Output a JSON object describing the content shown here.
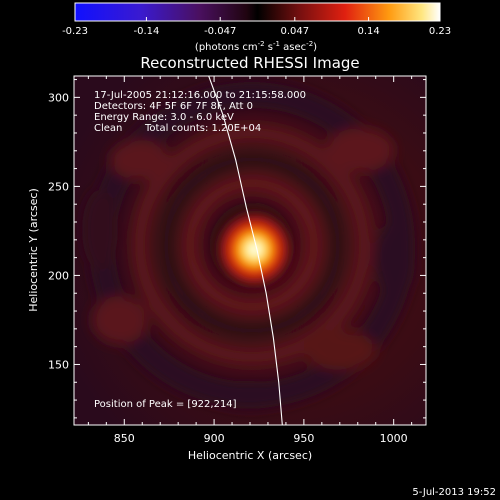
{
  "colorbar": {
    "tick_labels": [
      "-0.23",
      "-0.14",
      "-0.047",
      "0.047",
      "0.14",
      "0.23"
    ],
    "tick_values": [
      -0.23,
      -0.14,
      -0.047,
      0.047,
      0.14,
      0.23
    ],
    "range": [
      -0.23,
      0.23
    ],
    "units_text": "(photons cm",
    "units_exp1": "-2",
    "units_mid": " s",
    "units_exp2": "-1",
    "units_end": " asec",
    "units_exp3": "-2",
    "units_close": ")",
    "colors": {
      "low": "#1a1aff",
      "mid": "#000000",
      "high": "#ffffff"
    }
  },
  "title": "Reconstructed RHESSI Image",
  "info": {
    "time_range": "17-Jul-2005 21:12:16.000 to 21:15:58.000",
    "detectors": "Detectors: 4F 5F 6F 7F 8F, Att 0",
    "energy": "Energy Range: 3.0 - 6.0 keV",
    "clean": "Clean",
    "counts": "Total counts: 1.20E+04",
    "peak": "Position of Peak = [922,214]"
  },
  "axes": {
    "xlabel": "Heliocentric X (arcsec)",
    "ylabel": "Heliocentric Y (arcsec)",
    "xticks": [
      850,
      900,
      950,
      1000
    ],
    "yticks": [
      150,
      200,
      250,
      300
    ],
    "xtick_labels": [
      "850",
      "900",
      "950",
      "1000"
    ],
    "ytick_labels": [
      "150",
      "200",
      "250",
      "300"
    ],
    "xrange": [
      822,
      1018
    ],
    "yrange": [
      116,
      312
    ]
  },
  "source_peak": {
    "x": 922,
    "y": 214
  },
  "limb_points": [
    [
      897,
      312
    ],
    [
      905,
      290
    ],
    [
      912,
      265
    ],
    [
      918,
      238
    ],
    [
      924,
      214
    ],
    [
      929,
      190
    ],
    [
      933,
      165
    ],
    [
      936,
      140
    ],
    [
      938,
      116
    ]
  ],
  "footer": "5-Jul-2013 19:52"
}
